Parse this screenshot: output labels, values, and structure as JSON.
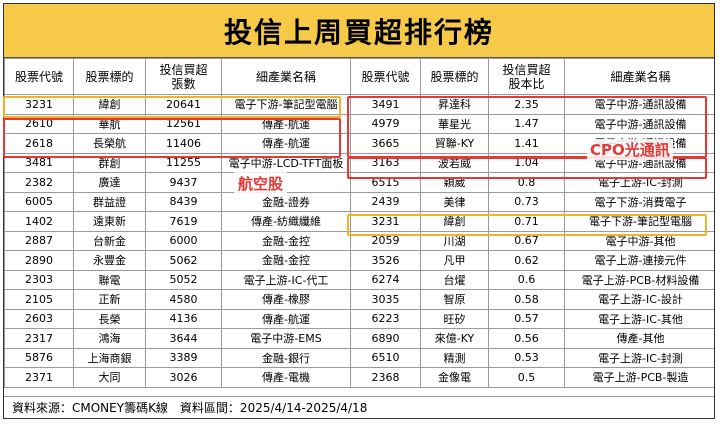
{
  "title": "投信上周買超排行榜",
  "headers": {
    "left": [
      "股票代號",
      "股票標的",
      "投信買超\n張數",
      "細產業名稱"
    ],
    "right": [
      "股票代號",
      "股票標的",
      "投信買超\n股本比",
      "細產業名稱"
    ]
  },
  "rows": [
    {
      "l": [
        "3231",
        "緯創",
        "20641",
        "電子下游-筆記型電腦"
      ],
      "r": [
        "3491",
        "昇達科",
        "2.35",
        "電子中游-通訊設備"
      ]
    },
    {
      "l": [
        "2610",
        "華航",
        "12561",
        "傳產-航運"
      ],
      "r": [
        "4979",
        "華星光",
        "1.47",
        "電子中游-通訊設備"
      ]
    },
    {
      "l": [
        "2618",
        "長榮航",
        "11406",
        "傳產-航運"
      ],
      "r": [
        "3665",
        "貿聯-KY",
        "1.41",
        "電子中游-通訊設備"
      ]
    },
    {
      "l": [
        "3481",
        "群創",
        "11255",
        "電子中游-LCD-TFT面板"
      ],
      "r": [
        "3163",
        "波若威",
        "1.04",
        "電子中游-通訊設備"
      ]
    },
    {
      "l": [
        "2382",
        "廣達",
        "9437",
        ""
      ],
      "r": [
        "6515",
        "穎崴",
        "0.8",
        "電子上游-IC-封測"
      ]
    },
    {
      "l": [
        "6005",
        "群益證",
        "8439",
        "金融-證券"
      ],
      "r": [
        "2439",
        "美律",
        "0.73",
        "電子下游-消費電子"
      ]
    },
    {
      "l": [
        "1402",
        "遠東新",
        "7619",
        "傳產-紡織纖維"
      ],
      "r": [
        "3231",
        "緯創",
        "0.71",
        "電子下游-筆記型電腦"
      ]
    },
    {
      "l": [
        "2887",
        "台新金",
        "6000",
        "金融-金控"
      ],
      "r": [
        "2059",
        "川湖",
        "0.67",
        "電子中游-其他"
      ]
    },
    {
      "l": [
        "2890",
        "永豐金",
        "5062",
        "金融-金控"
      ],
      "r": [
        "3526",
        "凡甲",
        "0.62",
        "電子上游-連接元件"
      ]
    },
    {
      "l": [
        "2303",
        "聯電",
        "5052",
        "電子上游-IC-代工"
      ],
      "r": [
        "6274",
        "台燿",
        "0.6",
        "電子上游-PCB-材料設備"
      ]
    },
    {
      "l": [
        "2105",
        "正新",
        "4580",
        "傳產-橡膠"
      ],
      "r": [
        "3035",
        "智原",
        "0.58",
        "電子上游-IC-設計"
      ]
    },
    {
      "l": [
        "2603",
        "長榮",
        "4136",
        "傳產-航運"
      ],
      "r": [
        "6223",
        "旺矽",
        "0.57",
        "電子上游-IC-其他"
      ]
    },
    {
      "l": [
        "2317",
        "鴻海",
        "3644",
        "電子中游-EMS"
      ],
      "r": [
        "6890",
        "來億-KY",
        "0.56",
        "傳產-其他"
      ]
    },
    {
      "l": [
        "5876",
        "上海商銀",
        "3389",
        "金融-銀行"
      ],
      "r": [
        "6510",
        "精測",
        "0.53",
        "電子上游-IC-封測"
      ]
    },
    {
      "l": [
        "2371",
        "大同",
        "3026",
        "傳產-電機"
      ],
      "r": [
        "2368",
        "金像電",
        "0.5",
        "電子上游-PCB-製造"
      ]
    }
  ],
  "annotations": {
    "airline": "航空股",
    "cpo": "CPO光通訊"
  },
  "footer": "資料來源：CMONEY籌碼K線　資料區間：2025/4/14-2025/4/18",
  "colors": {
    "title_bg": "#f7c948",
    "highlight_yellow": "#f0b429",
    "highlight_red": "#e53935"
  }
}
